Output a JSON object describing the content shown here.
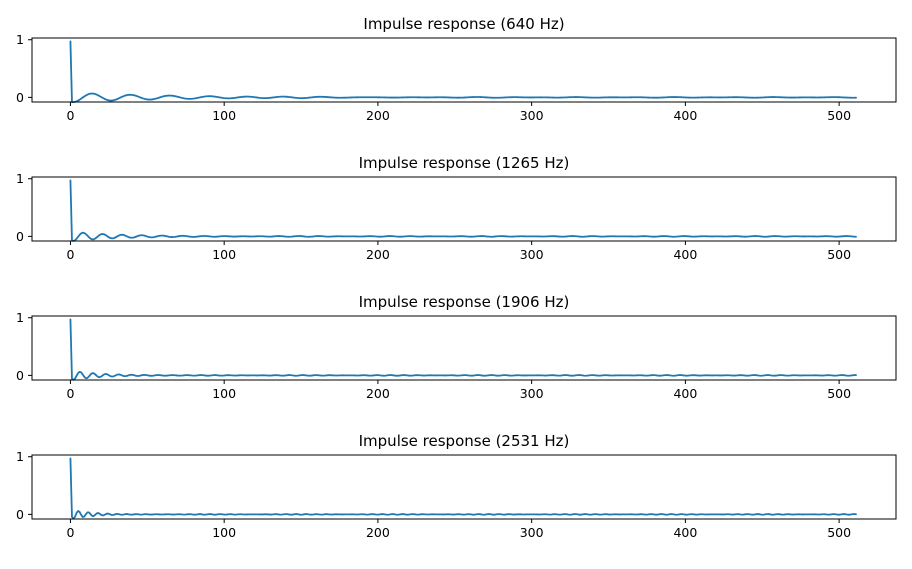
{
  "colors": {
    "line": "#1f77b4",
    "axes": "#000000",
    "background": "#ffffff"
  },
  "chart_data": [
    {
      "type": "line",
      "title": "Impulse response (640 Hz)",
      "frequency_hz": 640,
      "xlabel": "",
      "ylabel": "",
      "xlim": [
        -25,
        537
      ],
      "ylim": [
        -0.08,
        1.03
      ],
      "xticks": [
        0,
        100,
        200,
        300,
        400,
        500
      ],
      "yticks": [
        0,
        1
      ],
      "xtick_labels": [
        "0",
        "100",
        "200",
        "300",
        "400",
        "500"
      ],
      "ytick_labels": [
        "0",
        "1"
      ],
      "grid": false,
      "series": [
        {
          "samples": 512,
          "start": [
            0,
            0.97
          ],
          "first_min": [
            2,
            -0.05
          ],
          "oscillation_period": 25,
          "decay_to": 0.0
        }
      ]
    },
    {
      "type": "line",
      "title": "Impulse response (1265 Hz)",
      "frequency_hz": 1265,
      "xlabel": "",
      "ylabel": "",
      "xlim": [
        -25,
        537
      ],
      "ylim": [
        -0.08,
        1.03
      ],
      "xticks": [
        0,
        100,
        200,
        300,
        400,
        500
      ],
      "yticks": [
        0,
        1
      ],
      "xtick_labels": [
        "0",
        "100",
        "200",
        "300",
        "400",
        "500"
      ],
      "ytick_labels": [
        "0",
        "1"
      ],
      "grid": false,
      "series": [
        {
          "samples": 512,
          "start": [
            0,
            0.97
          ],
          "first_min": [
            2,
            -0.05
          ],
          "oscillation_period": 12.8,
          "decay_to": 0.0
        }
      ]
    },
    {
      "type": "line",
      "title": "Impulse response (1906 Hz)",
      "frequency_hz": 1906,
      "xlabel": "",
      "ylabel": "",
      "xlim": [
        -25,
        537
      ],
      "ylim": [
        -0.08,
        1.03
      ],
      "xticks": [
        0,
        100,
        200,
        300,
        400,
        500
      ],
      "yticks": [
        0,
        1
      ],
      "xtick_labels": [
        "0",
        "100",
        "200",
        "300",
        "400",
        "500"
      ],
      "ytick_labels": [
        "0",
        "1"
      ],
      "grid": false,
      "series": [
        {
          "samples": 512,
          "start": [
            0,
            0.97
          ],
          "first_min": [
            2,
            -0.05
          ],
          "oscillation_period": 8.5,
          "decay_to": 0.0
        }
      ]
    },
    {
      "type": "line",
      "title": "Impulse response (2531 Hz)",
      "frequency_hz": 2531,
      "xlabel": "",
      "ylabel": "",
      "xlim": [
        -25,
        537
      ],
      "ylim": [
        -0.08,
        1.03
      ],
      "xticks": [
        0,
        100,
        200,
        300,
        400,
        500
      ],
      "yticks": [
        0,
        1
      ],
      "xtick_labels": [
        "0",
        "100",
        "200",
        "300",
        "400",
        "500"
      ],
      "ytick_labels": [
        "0",
        "1"
      ],
      "grid": false,
      "series": [
        {
          "samples": 512,
          "start": [
            0,
            0.97
          ],
          "first_min": [
            2,
            -0.05
          ],
          "oscillation_period": 6.4,
          "decay_to": 0.0
        }
      ]
    }
  ]
}
